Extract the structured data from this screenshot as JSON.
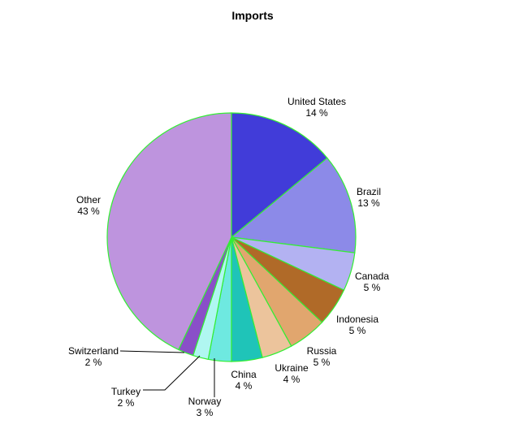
{
  "chart_data": {
    "type": "pie",
    "title": "Imports",
    "categories": [
      "United States",
      "Brazil",
      "Canada",
      "Indonesia",
      "Russia",
      "Ukraine",
      "China",
      "Norway",
      "Turkey",
      "Switzerland",
      "Other"
    ],
    "values": [
      14,
      13,
      5,
      5,
      5,
      4,
      4,
      3,
      2,
      2,
      43
    ],
    "value_labels": [
      "14 %",
      "13 %",
      "5 %",
      "5 %",
      "5 %",
      "4 %",
      "4 %",
      "3 %",
      "2 %",
      "2 %",
      "43 %"
    ],
    "colors": [
      "#413cd9",
      "#8c8ae8",
      "#b3b2f2",
      "#b06a28",
      "#e1a66e",
      "#ecc49c",
      "#1fc4b8",
      "#6ee9e0",
      "#b0f7f1",
      "#8a4fc8",
      "#be94de"
    ],
    "edge_color": "#33ee33",
    "start_angle": "12 o'clock",
    "direction": "clockwise",
    "legend": "none"
  }
}
